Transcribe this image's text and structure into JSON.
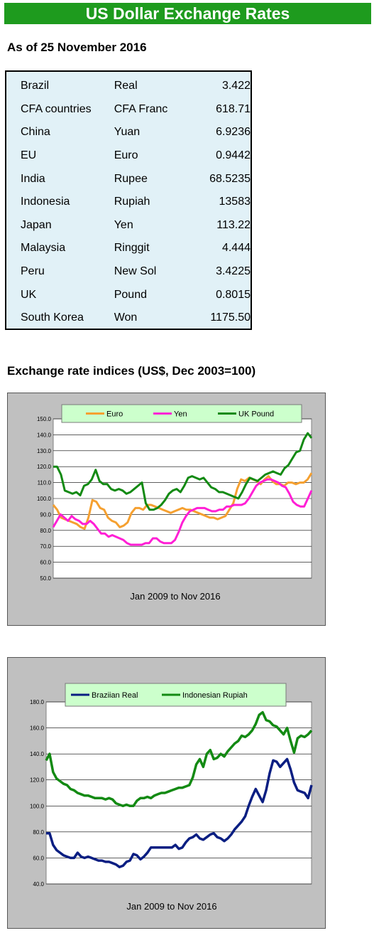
{
  "title": "US Dollar Exchange Rates",
  "as_of": "As of 25 November 2016",
  "rates": [
    {
      "country": "Brazil",
      "currency": "Real",
      "value": "3.422"
    },
    {
      "country": "CFA countries",
      "currency": "CFA Franc",
      "value": "618.71"
    },
    {
      "country": "China",
      "currency": "Yuan",
      "value": "6.9236"
    },
    {
      "country": "EU",
      "currency": "Euro",
      "value": "0.9442"
    },
    {
      "country": "India",
      "currency": "Rupee",
      "value": "68.5235"
    },
    {
      "country": "Indonesia",
      "currency": "Rupiah",
      "value": "13583"
    },
    {
      "country": "Japan",
      "currency": "Yen",
      "value": "113.22"
    },
    {
      "country": "Malaysia",
      "currency": "Ringgit",
      "value": "4.444"
    },
    {
      "country": "Peru",
      "currency": "New Sol",
      "value": "3.4225"
    },
    {
      "country": "UK",
      "currency": "Pound",
      "value": "0.8015"
    },
    {
      "country": "South Korea",
      "currency": "Won",
      "value": "1175.50"
    }
  ],
  "indices_heading": "Exchange rate indices (US$, Dec 2003=100)",
  "chart_data": [
    {
      "type": "line",
      "xlabel": "Jan 2009 to Nov 2016",
      "ylim": [
        50,
        150
      ],
      "yticks": [
        "150.0",
        "140.0",
        "130.0",
        "120.0",
        "110.0",
        "100.0",
        "90.0",
        "80.0",
        "70.0",
        "60.0",
        "50.0"
      ],
      "legend_position": "top",
      "grid": true,
      "series": [
        {
          "name": "Euro",
          "color": "#f5a030",
          "values": [
            96,
            93,
            88,
            87,
            86,
            85,
            84,
            82,
            81,
            88,
            99,
            98,
            94,
            93,
            88,
            86,
            85,
            82,
            83,
            85,
            91,
            94,
            94,
            93,
            96,
            96,
            95,
            94,
            93,
            92,
            91,
            92,
            93,
            94,
            93,
            93,
            92,
            91,
            90,
            89,
            88,
            88,
            87,
            88,
            89,
            93,
            97,
            106,
            112,
            111,
            113,
            112,
            111,
            109,
            112,
            114,
            111,
            109,
            109,
            108,
            110,
            110,
            109,
            110,
            110,
            112,
            116
          ]
        },
        {
          "name": "Yen",
          "color": "#ff1fd5",
          "values": [
            82,
            86,
            90,
            88,
            86,
            89,
            87,
            86,
            84,
            84,
            86,
            84,
            81,
            78,
            78,
            76,
            77,
            76,
            75,
            74,
            72,
            71,
            71,
            71,
            71,
            72,
            72,
            75,
            75,
            73,
            72,
            72,
            72,
            74,
            79,
            85,
            89,
            92,
            93,
            94,
            94,
            94,
            93,
            92,
            92,
            93,
            93,
            95,
            95,
            96,
            96,
            96,
            97,
            100,
            104,
            108,
            110,
            111,
            112,
            112,
            111,
            110,
            108,
            107,
            103,
            98,
            96,
            95,
            95,
            100,
            105
          ]
        },
        {
          "name": "UK Pound",
          "color": "#138a13",
          "values": [
            120,
            120,
            115,
            105,
            104,
            103,
            104,
            102,
            108,
            109,
            112,
            118,
            111,
            109,
            109,
            106,
            105,
            106,
            105,
            103,
            104,
            106,
            108,
            110,
            97,
            93,
            93,
            94,
            96,
            99,
            103,
            105,
            106,
            104,
            108,
            113,
            114,
            113,
            112,
            113,
            110,
            107,
            106,
            104,
            104,
            103,
            102,
            101,
            100,
            104,
            109,
            113,
            112,
            111,
            113,
            115,
            116,
            117,
            116,
            115,
            119,
            121,
            125,
            129,
            130,
            137,
            141,
            138
          ]
        }
      ]
    },
    {
      "type": "line",
      "xlabel": "Jan 2009 to Nov 2016",
      "ylim": [
        40,
        180
      ],
      "yticks": [
        "180.0",
        "160.0",
        "140.0",
        "120.0",
        "100.0",
        "80.0",
        "60.0",
        "40.0"
      ],
      "legend_position": "top",
      "grid": true,
      "series": [
        {
          "name": "Braziian Real",
          "color": "#0a1e82",
          "values": [
            79,
            79,
            70,
            66,
            64,
            62,
            61,
            60,
            60,
            64,
            61,
            60,
            61,
            60,
            59,
            58,
            58,
            57,
            57,
            56,
            55,
            53,
            54,
            57,
            58,
            63,
            62,
            59,
            61,
            64,
            68,
            68,
            68,
            68,
            68,
            68,
            68,
            70,
            67,
            68,
            72,
            75,
            76,
            78,
            75,
            74,
            76,
            78,
            79,
            76,
            75,
            73,
            75,
            78,
            82,
            85,
            88,
            92,
            100,
            107,
            113,
            108,
            103,
            112,
            125,
            135,
            134,
            130,
            133,
            136,
            128,
            118,
            112,
            111,
            110,
            106,
            116
          ]
        },
        {
          "name": "Indonesian Rupiah",
          "color": "#138a13",
          "values": [
            135,
            140,
            126,
            121,
            119,
            117,
            116,
            113,
            112,
            110,
            109,
            108,
            108,
            107,
            106,
            106,
            106,
            105,
            106,
            105,
            102,
            101,
            100,
            101,
            100,
            100,
            104,
            106,
            106,
            107,
            106,
            108,
            109,
            110,
            110,
            111,
            112,
            113,
            114,
            114,
            115,
            116,
            122,
            132,
            136,
            130,
            140,
            143,
            136,
            137,
            140,
            138,
            142,
            145,
            148,
            150,
            154,
            153,
            155,
            158,
            163,
            170,
            172,
            166,
            165,
            162,
            161,
            158,
            155,
            160,
            150,
            141,
            152,
            154,
            153,
            155,
            158
          ]
        }
      ]
    }
  ]
}
